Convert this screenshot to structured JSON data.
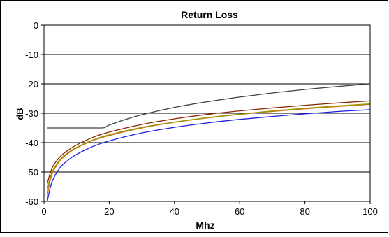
{
  "chart_data": {
    "type": "line",
    "title": "Return Loss",
    "xlabel": "Mhz",
    "ylabel": "dB",
    "xlim": [
      0,
      100
    ],
    "ylim": [
      -60,
      0
    ],
    "x_ticks": [
      "0",
      "20",
      "40",
      "60",
      "80",
      "100"
    ],
    "y_ticks": [
      "0",
      "-10",
      "-20",
      "-30",
      "-40",
      "-50",
      "-60"
    ],
    "grid": "horizontal",
    "legend": "none",
    "series": [
      {
        "color": "#404040",
        "x": [
          1,
          5,
          10,
          17.8,
          20,
          25,
          30,
          40,
          50,
          60,
          70,
          80,
          90,
          100
        ],
        "y": [
          -35,
          -35,
          -35,
          -35,
          -34.0,
          -32.1,
          -30.5,
          -28.0,
          -26.1,
          -24.5,
          -23.1,
          -21.9,
          -20.9,
          -20.0
        ]
      },
      {
        "color": "#8b2500",
        "x": [
          1,
          2,
          3,
          5,
          7,
          10,
          15,
          20,
          30,
          40,
          50,
          60,
          70,
          80,
          90,
          100
        ],
        "y": [
          -54.0,
          -50.0,
          -47.6,
          -44.7,
          -42.9,
          -40.8,
          -38.2,
          -36.4,
          -33.8,
          -31.9,
          -30.4,
          -29.2,
          -28.2,
          -27.3,
          -26.5,
          -25.8
        ]
      },
      {
        "color": "#d2691e",
        "x": [
          1,
          2,
          3,
          5,
          7,
          10,
          15,
          20,
          30,
          40,
          50,
          60,
          70,
          80,
          90,
          100
        ],
        "y": [
          -58.0,
          -52.5,
          -49.5,
          -46.0,
          -44.0,
          -41.8,
          -39.3,
          -37.6,
          -35.0,
          -33.1,
          -31.6,
          -30.4,
          -29.4,
          -28.5,
          -27.7,
          -27.0
        ]
      },
      {
        "color": "#9a9a00",
        "x": [
          1,
          2,
          3,
          5,
          7,
          10,
          15,
          20,
          30,
          40,
          50,
          60,
          70,
          80,
          90,
          100
        ],
        "y": [
          -56.0,
          -51.5,
          -48.9,
          -45.6,
          -43.7,
          -41.6,
          -39.1,
          -37.3,
          -34.8,
          -33.0,
          -31.5,
          -30.3,
          -29.2,
          -28.3,
          -27.5,
          -26.8
        ]
      },
      {
        "color": "#1f1fe0",
        "x": [
          1,
          2,
          3,
          5,
          7,
          10,
          15,
          20,
          30,
          40,
          50,
          60,
          70,
          80,
          90,
          100
        ],
        "y": [
          -60.0,
          -55.0,
          -52.0,
          -48.4,
          -46.3,
          -44.0,
          -41.3,
          -39.4,
          -36.7,
          -34.8,
          -33.3,
          -32.1,
          -31.1,
          -30.2,
          -29.4,
          -28.8
        ]
      }
    ]
  }
}
